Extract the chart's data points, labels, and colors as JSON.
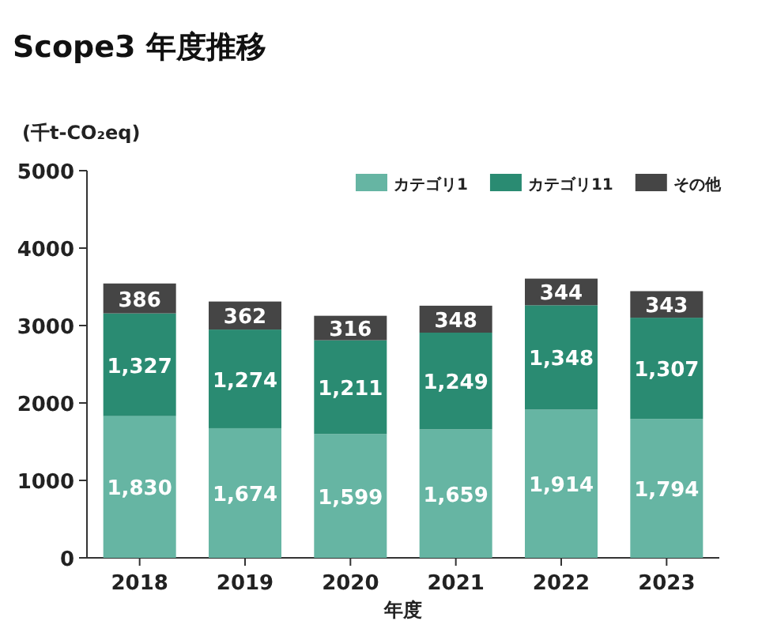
{
  "chart_data": {
    "type": "bar",
    "title": "Scope3 年度推移",
    "ylabel": "(千t-CO₂eq)",
    "xlabel": "年度",
    "categories": [
      "2018",
      "2019",
      "2020",
      "2021",
      "2022",
      "2023"
    ],
    "stacked": true,
    "ylim": [
      0,
      5000
    ],
    "yticks": [
      0,
      1000,
      2000,
      3000,
      4000,
      5000
    ],
    "grid": false,
    "legend": "top right",
    "series": [
      {
        "name": "カテゴリ1",
        "color": "#66b5a3",
        "values": [
          1830,
          1674,
          1599,
          1659,
          1914,
          1794
        ],
        "value_labels": [
          "1,830",
          "1,674",
          "1,599",
          "1,659",
          "1,914",
          "1,794"
        ]
      },
      {
        "name": "カテゴリ11",
        "color": "#2a8b72",
        "values": [
          1327,
          1274,
          1211,
          1249,
          1348,
          1307
        ],
        "value_labels": [
          "1,327",
          "1,274",
          "1,211",
          "1,249",
          "1,348",
          "1,307"
        ]
      },
      {
        "name": "その他",
        "color": "#454545",
        "values": [
          386,
          362,
          316,
          348,
          344,
          343
        ],
        "value_labels": [
          "386",
          "362",
          "316",
          "348",
          "344",
          "343"
        ]
      }
    ]
  }
}
